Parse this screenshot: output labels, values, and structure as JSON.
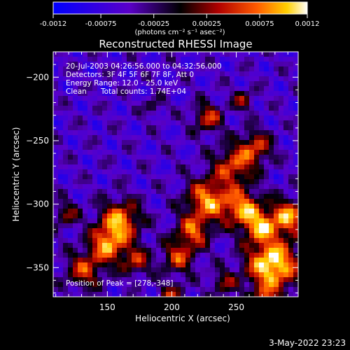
{
  "chart_data": {
    "type": "heatmap",
    "title": "Reconstructed RHESSI Image",
    "xlabel": "Heliocentric X (arcsec)",
    "ylabel": "Heliocentric Y (arcsec)",
    "xlim": [
      108,
      298
    ],
    "ylim": [
      -373,
      -180
    ],
    "xticks": [
      150,
      200,
      250
    ],
    "yticks": [
      -200,
      -250,
      -300,
      -350
    ],
    "colorbar": {
      "min": -0.0012,
      "max": 0.0012,
      "tick_values": [
        -0.0012,
        -0.00075,
        -0.00025,
        0.00025,
        0.00075,
        0.0012
      ],
      "tick_labels": [
        "-0.0012",
        "-0.00075",
        "-0.00025",
        "0.00025",
        "0.00075",
        "0.0012"
      ],
      "unit_label": "(photons cm⁻² s⁻¹ asec⁻²)",
      "colors": [
        "#0000ff",
        "#5a00c8",
        "#000000",
        "#b00000",
        "#ff5a00",
        "#ffd000",
        "#ffffff"
      ]
    },
    "annotations": {
      "time": "20-Jul-2003 04:26:56.000 to 04:32:56.000",
      "detectors": "Detectors: 3F 4F 5F 6F 7F 8F, Att 0",
      "energy": "Energy Range: 12.0 - 25.0 keV",
      "algorithm": "Clean",
      "counts": "Total counts: 1.74E+04",
      "peak": "Position of Peak = [278,-348]"
    },
    "peak_position": [
      278,
      -348
    ]
  },
  "footer": {
    "date": "3-May-2022 23:23"
  }
}
